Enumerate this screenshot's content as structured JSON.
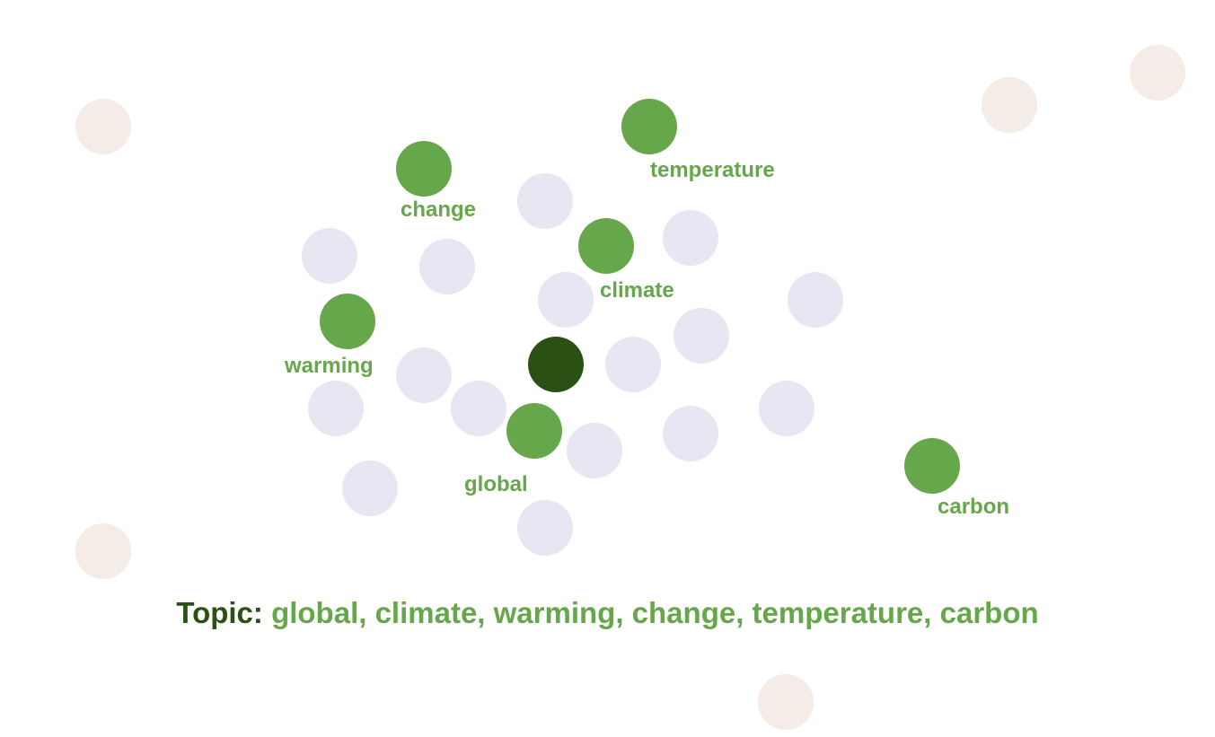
{
  "colors": {
    "center": "#2a5014",
    "topic_word": "#67a74c",
    "cluster_dot": "#e8e6f2",
    "outlier_dot": "#f5ebe7",
    "topic_prefix": "#2a5014"
  },
  "topic": {
    "prefix": "Topic:",
    "words_text": "global, climate, warming, change, temperature, carbon"
  },
  "topic_words": [
    "temperature",
    "change",
    "climate",
    "warming",
    "global",
    "carbon"
  ]
}
